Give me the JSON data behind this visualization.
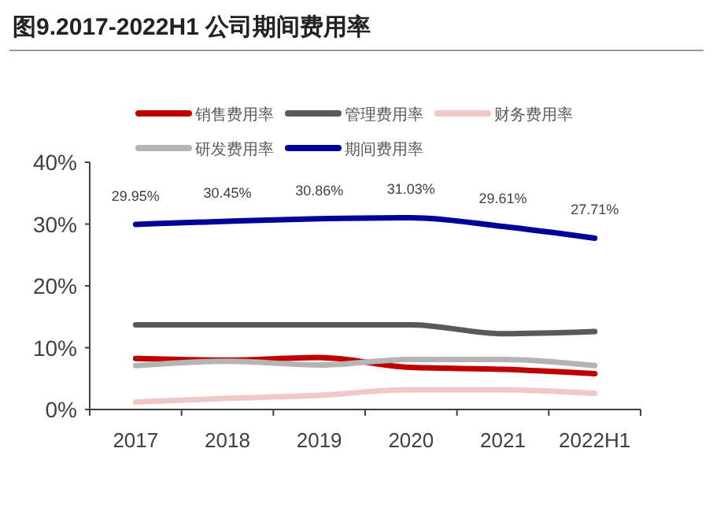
{
  "chart_data": {
    "type": "line",
    "title": "图9.2017-2022H1 公司期间费用率",
    "categories": [
      "2017",
      "2018",
      "2019",
      "2020",
      "2021",
      "2022H1"
    ],
    "series": [
      {
        "name": "销售费用率",
        "color": "#c00000",
        "values": [
          8.25,
          8.0,
          8.4,
          6.8,
          6.5,
          5.8
        ]
      },
      {
        "name": "管理费用率",
        "color": "#595959",
        "values": [
          13.7,
          13.7,
          13.7,
          13.7,
          12.25,
          12.6
        ]
      },
      {
        "name": "财务费用率",
        "color": "#f0c8c8",
        "values": [
          1.2,
          1.8,
          2.3,
          3.2,
          3.2,
          2.6
        ]
      },
      {
        "name": "研发费用率",
        "color": "#b4b4b4",
        "values": [
          7.1,
          7.8,
          7.2,
          8.1,
          8.1,
          7.1
        ]
      },
      {
        "name": "期间费用率",
        "color": "#000099",
        "values": [
          29.95,
          30.45,
          30.86,
          31.03,
          29.61,
          27.71
        ],
        "value_labels": [
          "29.95%",
          "30.45%",
          "30.86%",
          "31.03%",
          "29.61%",
          "27.71%"
        ]
      }
    ],
    "ylim": [
      0,
      40
    ],
    "yticks": [
      {
        "value": 0,
        "label": "0%"
      },
      {
        "value": 10,
        "label": "10%"
      },
      {
        "value": 20,
        "label": "20%"
      },
      {
        "value": 30,
        "label": "30%"
      },
      {
        "value": 40,
        "label": "40%"
      }
    ],
    "grid": false,
    "legend": "top",
    "marker": "none",
    "line_style": "solid"
  }
}
